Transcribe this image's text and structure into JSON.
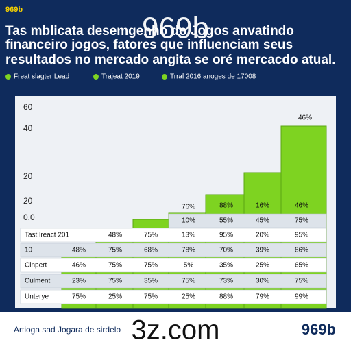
{
  "header": {
    "brand": "969b",
    "watermark": "969b",
    "title_lines": [
      "Tas mblicata desemgenho do Jogos anvatindo",
      "financeiro  jogos, fatores que influenciam seus",
      "resultados no mercado angita se oré mercacdo atual."
    ]
  },
  "legend": [
    "Freat slagter Lead",
    "Trajeat 2019",
    "Trral 2016 anoges de 17008"
  ],
  "axis_labels": [
    "60",
    "40",
    "20",
    "20",
    "0.0"
  ],
  "bar_labels": [
    "76%",
    "88%",
    "16%",
    "46%",
    "46%"
  ],
  "table": {
    "rows": [
      {
        "label": null,
        "cells": [
          null,
          null,
          null,
          "10%",
          "55%",
          "45%",
          "75%"
        ]
      },
      {
        "label": "Tast lreact 201",
        "cells": [
          null,
          "48%",
          "75%",
          "13%",
          "95%",
          "20%",
          "95%"
        ]
      },
      {
        "label": "10",
        "cells": [
          "48%",
          "75%",
          "68%",
          "78%",
          "70%",
          "39%",
          "86%"
        ]
      },
      {
        "label": "Cinpert",
        "cells": [
          "46%",
          "75%",
          "75%",
          "5%",
          "35%",
          "25%",
          "65%"
        ]
      },
      {
        "label": "Culment",
        "cells": [
          "23%",
          "75%",
          "35%",
          "75%",
          "73%",
          "30%",
          "75%"
        ]
      },
      {
        "label": "Unterye",
        "cells": [
          "75%",
          "25%",
          "75%",
          "25%",
          "88%",
          "79%",
          "99%"
        ]
      }
    ]
  },
  "footer": {
    "text": "Artioga sad Jogara de sirdelo",
    "watermark": "3z.com",
    "brand": "969b"
  }
}
